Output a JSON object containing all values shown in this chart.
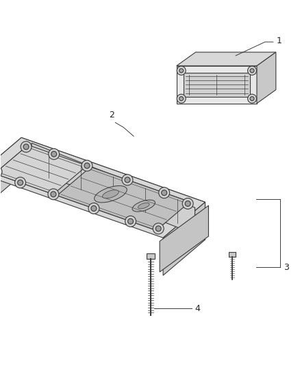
{
  "bg_color": "#ffffff",
  "line_color": "#3a3a3a",
  "fill_main": "#e8e8e8",
  "fill_top": "#d8d8d8",
  "fill_side": "#c8c8c8",
  "fill_inner": "#d0d0d0",
  "fill_panel": "#e0e0e0",
  "label_color": "#222222",
  "label_fontsize": 9,
  "lw": 0.8
}
